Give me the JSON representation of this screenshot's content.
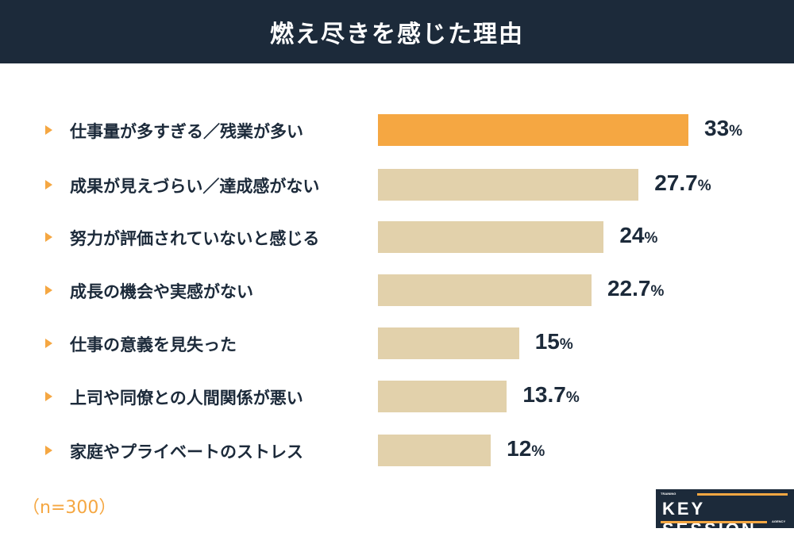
{
  "header": {
    "title": "燃え尽きを感じた理由"
  },
  "chart_data": {
    "type": "bar",
    "orientation": "horizontal",
    "categories": [
      "仕事量が多すぎる／残業が多い",
      "成果が見えづらい／達成感がない",
      "努力が評価されていないと感じる",
      "成長の機会や実感がない",
      "仕事の意義を見失った",
      "上司や同僚との人間関係が悪い",
      "家庭やプライベートのストレス"
    ],
    "values": [
      33,
      27.7,
      24,
      22.7,
      15,
      13.7,
      12
    ],
    "value_labels": [
      "33",
      "27.7",
      "24",
      "22.7",
      "15",
      "13.7",
      "12"
    ],
    "unit": "%",
    "colors": {
      "highlight": "#f5a742",
      "default": "#e2d1ab"
    },
    "grid": false
  },
  "footnote": "（n=300）",
  "logo": {
    "top": "TRAINING",
    "main": "KEY SESSION",
    "bottom": "AGENCY"
  }
}
